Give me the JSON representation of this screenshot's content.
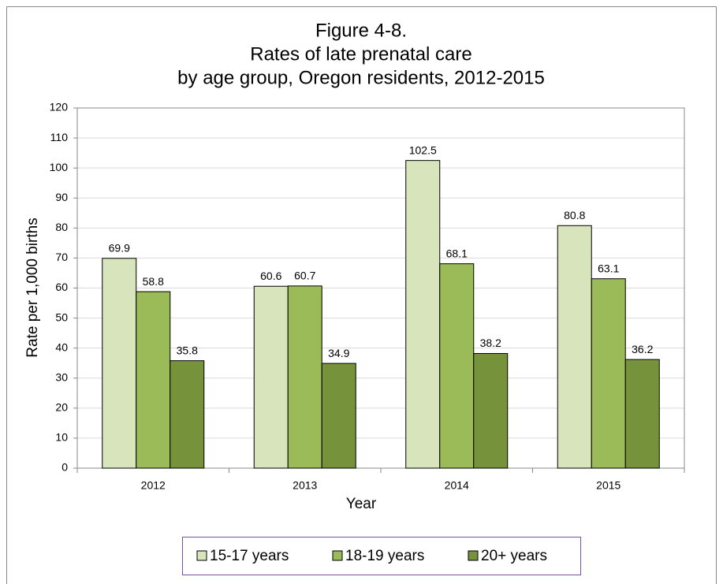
{
  "chart_data": {
    "type": "bar",
    "title": [
      "Figure 4-8.",
      "Rates of late prenatal care",
      "by age group, Oregon residents, 2012-2015"
    ],
    "x_label": "Year",
    "y_label": "Rate per 1,000 births",
    "categories": [
      "2012",
      "2013",
      "2014",
      "2015"
    ],
    "series": [
      {
        "name": "15-17 years",
        "color": "#d8e4bc",
        "values": [
          69.9,
          60.6,
          102.5,
          80.8
        ]
      },
      {
        "name": "18-19 years",
        "color": "#9bbb59",
        "values": [
          58.8,
          60.7,
          68.1,
          63.1
        ]
      },
      {
        "name": "20+ years",
        "color": "#76933c",
        "values": [
          35.8,
          34.9,
          38.2,
          36.2
        ]
      }
    ],
    "ylim": [
      0,
      120
    ],
    "yticks": [
      0,
      10,
      20,
      30,
      40,
      50,
      60,
      70,
      80,
      90,
      100,
      110,
      120
    ],
    "grid": true,
    "legend": "bottom"
  }
}
